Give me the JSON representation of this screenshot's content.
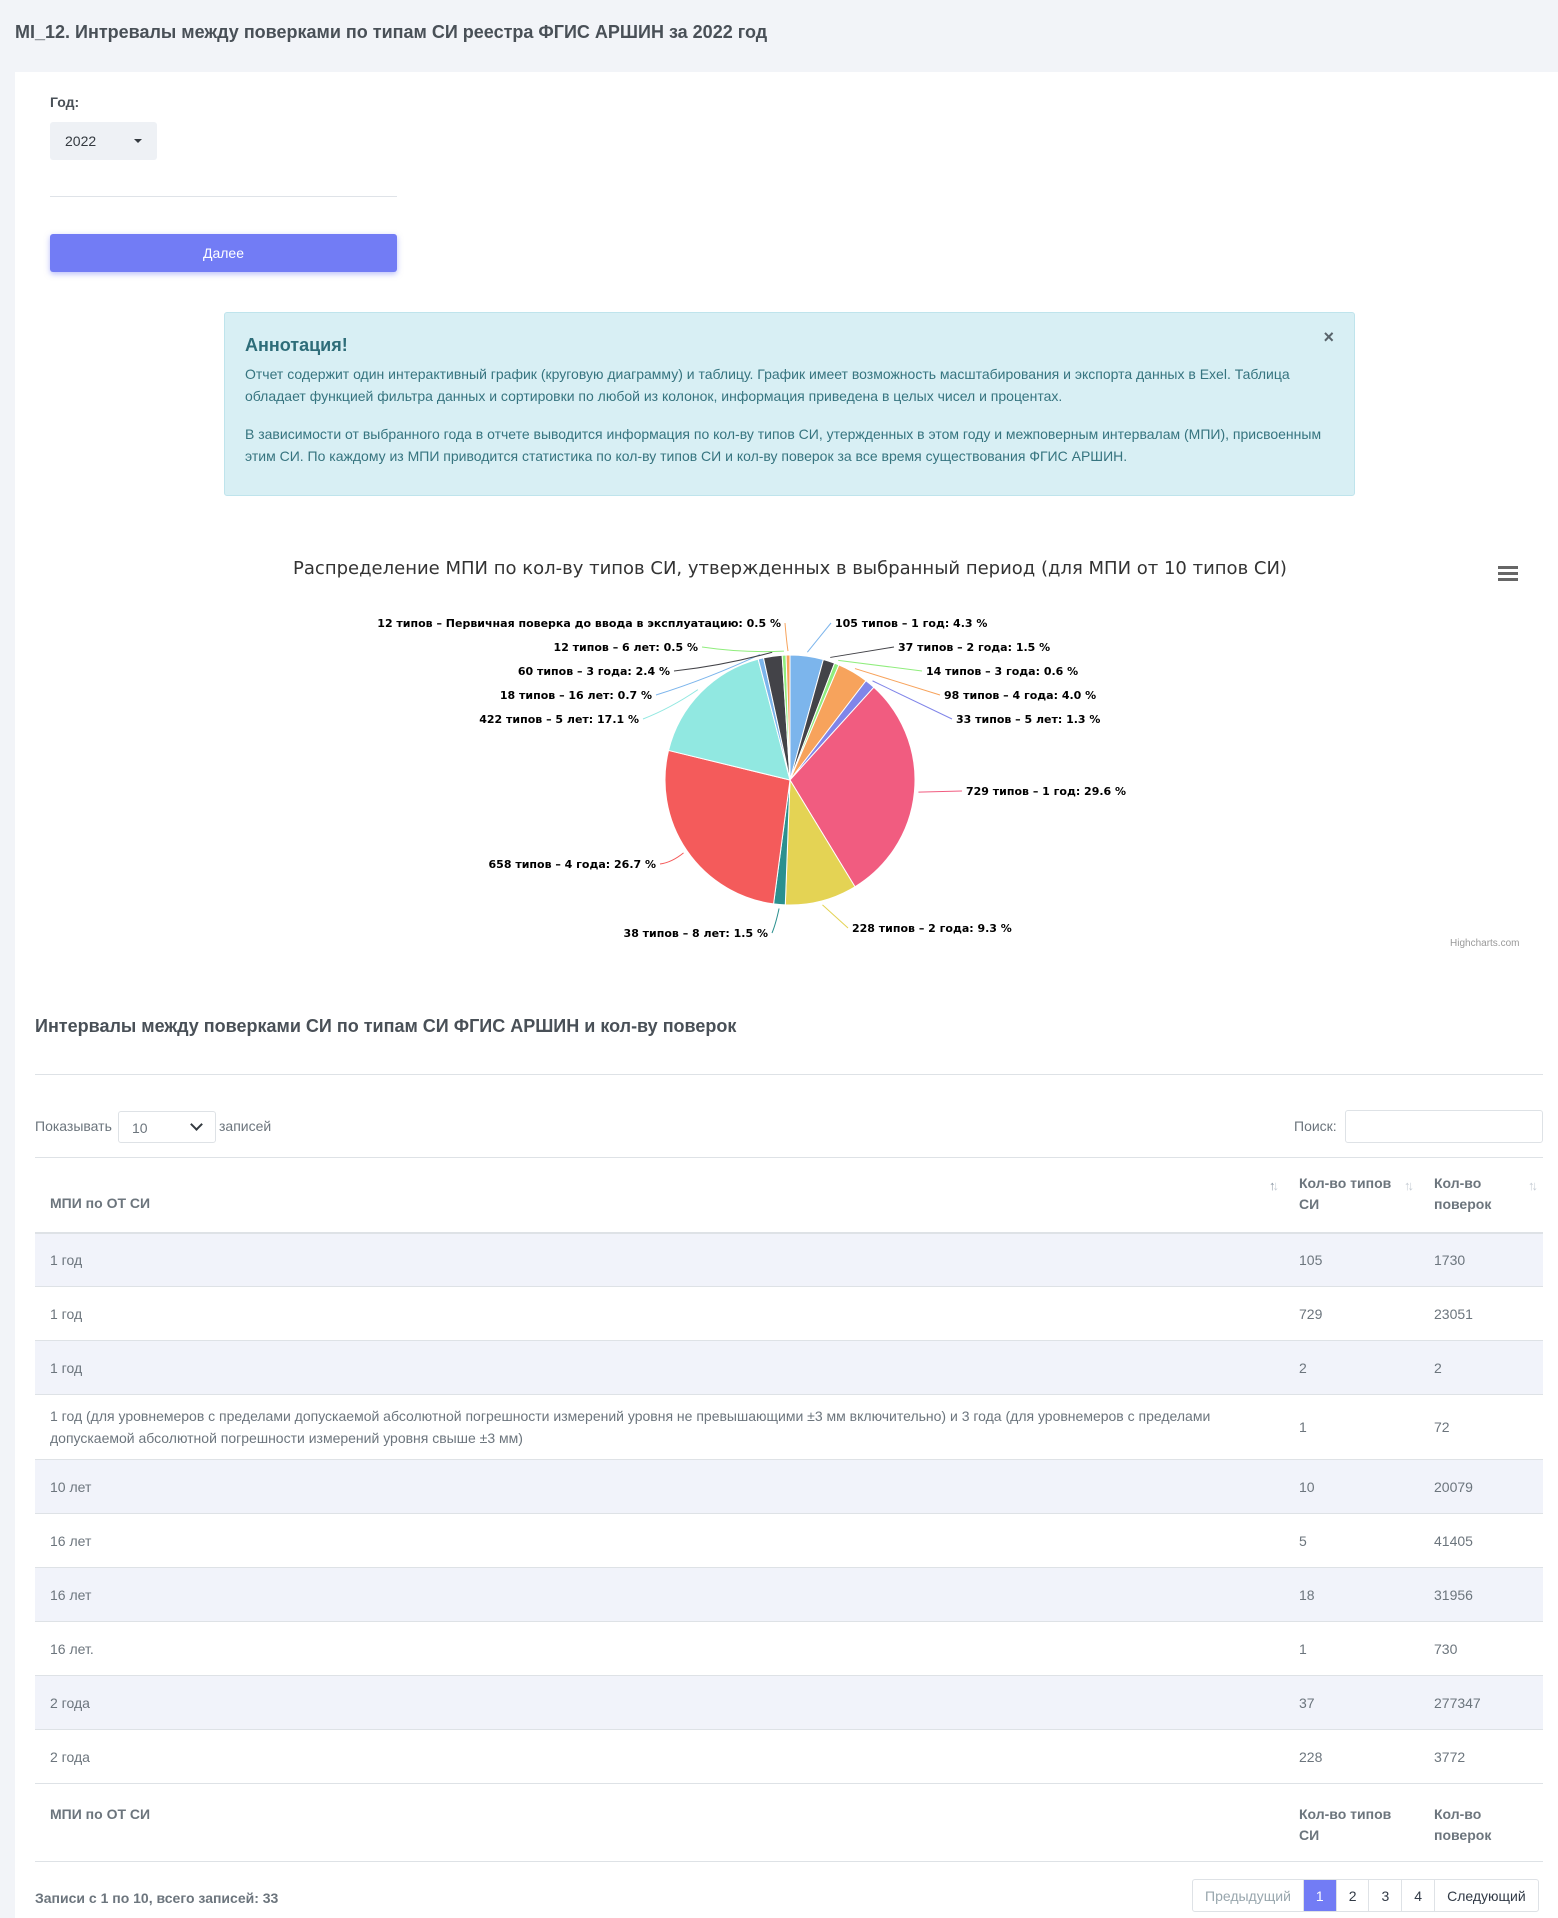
{
  "page": {
    "title": "MI_12. Интревалы между поверками по типам СИ реестра ФГИС АРШИН за 2022 год"
  },
  "form": {
    "year_label": "Год:",
    "year_value": "2022",
    "next_button": "Далее"
  },
  "annotation": {
    "title": "Аннотация!",
    "close": "×",
    "p1": "Отчет содержит один интерактивный график (круговую диаграмму) и таблицу. График имеет возможность масштабирования и экспорта данных в Exel. Таблица обладает функцией фильтра данных и сортировки по любой из колонок, информация приведена в целых чисел и процентах.",
    "p2": "В зависимости от выбранного года в отчете выводится информация по кол-ву типов СИ, утержденных в этом году и межповерным интервалам (МПИ), присвоенным этим СИ. По каждому из МПИ приводится статистика по кол-ву типов СИ и кол-ву поверок за все время существования ФГИС АРШИН."
  },
  "chart_data": {
    "type": "pie",
    "title": "Распределение МПИ по кол-ву типов СИ, утвержденных в выбранный период (для МПИ от 10 типов СИ)",
    "credits": "Highcharts.com",
    "slices": [
      {
        "label": "105 типов – 1 год: 4.3 %",
        "value": 4.3,
        "color": "#7cb5ec"
      },
      {
        "label": "37 типов – 2 года: 1.5 %",
        "value": 1.5,
        "color": "#434348"
      },
      {
        "label": "14 типов – 3 года: 0.6 %",
        "value": 0.6,
        "color": "#90ed7d"
      },
      {
        "label": "98 типов – 4 года: 4.0 %",
        "value": 4.0,
        "color": "#f7a35c"
      },
      {
        "label": "33 типов – 5 лет: 1.3 %",
        "value": 1.3,
        "color": "#8085e9"
      },
      {
        "label": "729 типов – 1 год: 29.6 %",
        "value": 29.6,
        "color": "#f15c80"
      },
      {
        "label": "228 типов – 2 года: 9.3 %",
        "value": 9.3,
        "color": "#e4d354"
      },
      {
        "label": "38 типов – 8 лет: 1.5 %",
        "value": 1.5,
        "color": "#2b908f"
      },
      {
        "label": "658 типов – 4 года: 26.7 %",
        "value": 26.7,
        "color": "#f45b5b"
      },
      {
        "label": "422 типов – 5 лет: 17.1 %",
        "value": 17.1,
        "color": "#91e8e1"
      },
      {
        "label": "18 типов – 16 лет: 0.7 %",
        "value": 0.7,
        "color": "#7cb5ec"
      },
      {
        "label": "60 типов – 3 года: 2.4 %",
        "value": 2.4,
        "color": "#434348"
      },
      {
        "label": "12 типов – 6 лет: 0.5 %",
        "value": 0.5,
        "color": "#90ed7d"
      },
      {
        "label": "12 типов – Первичная поверка до ввода в эксплуатацию: 0.5 %",
        "value": 0.5,
        "color": "#f7a35c"
      }
    ]
  },
  "table": {
    "title": "Интервалы между поверками СИ по типам СИ ФГИС АРШИН и кол-ву поверок",
    "length_prefix": "Показывать",
    "length_value": "10",
    "length_suffix": "записей",
    "search_label": "Поиск:",
    "headers": [
      "МПИ по ОТ СИ",
      "Кол-во типов СИ",
      "Кол-во поверок"
    ],
    "footers": [
      "МПИ по ОТ СИ",
      "Кол-во типов СИ",
      "Кол-во поверок"
    ],
    "rows": [
      [
        "1 год",
        "105",
        "1730"
      ],
      [
        "1 год",
        "729",
        "23051"
      ],
      [
        "1 год",
        "2",
        "2"
      ],
      [
        "1 год (для уровнемеров с пределами допускаемой абсолютной погрешности измерений уровня не превышающими ±3 мм включительно) и 3 года (для уровнемеров с пределами допускаемой абсолютной погрешности измерений уровня свыше ±3 мм)",
        "1",
        "72"
      ],
      [
        "10 лет",
        "10",
        "20079"
      ],
      [
        "16 лет",
        "5",
        "41405"
      ],
      [
        "16 лет",
        "18",
        "31956"
      ],
      [
        "16 лет.",
        "1",
        "730"
      ],
      [
        "2 года",
        "37",
        "277347"
      ],
      [
        "2 года",
        "228",
        "3772"
      ]
    ],
    "info": "Записи с 1 по 10, всего записей: 33",
    "pager": {
      "prev": "Предыдущий",
      "pages": [
        "1",
        "2",
        "3",
        "4"
      ],
      "active_page": "1",
      "next": "Следующий"
    }
  }
}
